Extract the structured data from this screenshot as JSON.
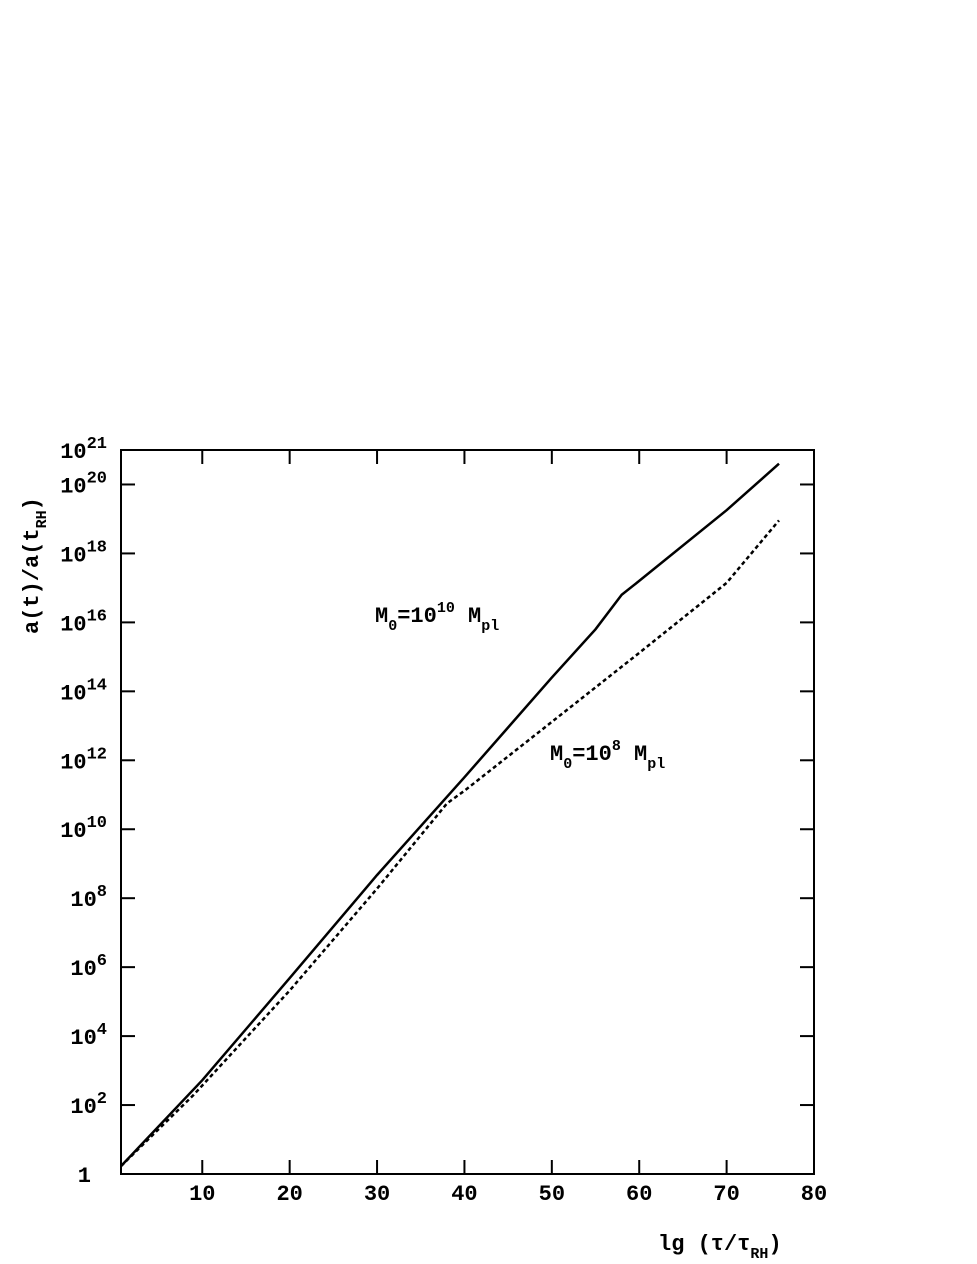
{
  "chart_data": {
    "type": "line",
    "ylabel": [
      {
        "text": "a(t)/a(t"
      },
      {
        "text": "RH",
        "style": "sub"
      },
      {
        "text": ")"
      }
    ],
    "xlabel": [
      {
        "text": "lg (τ/τ"
      },
      {
        "text": "RH",
        "style": "sub"
      },
      {
        "text": ")"
      }
    ],
    "log_y": true,
    "xlim": [
      0.7,
      80
    ],
    "xticks": [
      10,
      20,
      30,
      40,
      50,
      60,
      70,
      80
    ],
    "ylim": [
      1,
      1e+21
    ],
    "yticks": [
      1,
      {
        "value": 100.0,
        "label": "10",
        "exponent": "2"
      },
      {
        "value": 10000.0,
        "label": "10",
        "exponent": "4"
      },
      {
        "value": 1000000.0,
        "label": "10",
        "exponent": "6"
      },
      {
        "value": 100000000.0,
        "label": "10",
        "exponent": "8"
      },
      {
        "value": 10000000000.0,
        "label": "10",
        "exponent": "10"
      },
      {
        "value": 1000000000000.0,
        "label": "10",
        "exponent": "12"
      },
      {
        "value": 100000000000000.0,
        "label": "10",
        "exponent": "14"
      },
      {
        "value": 1e+16,
        "label": "10",
        "exponent": "16"
      },
      {
        "value": 1e+18,
        "label": "10",
        "exponent": "18"
      },
      {
        "value": 1e+20,
        "label": "10",
        "exponent": "20"
      },
      {
        "value": 1e+21,
        "label": "10",
        "exponent": "21"
      }
    ],
    "series": [
      {
        "color": "#000000",
        "dash": "solid",
        "x": [
          0.7,
          10,
          20,
          30,
          40,
          50,
          55,
          58,
          60,
          70,
          76
        ],
        "values": [
          1.7,
          525,
          480000.0,
          470000000.0,
          320000000000.0,
          250000000000000.0,
          6300000000000000.0,
          6.3e+16,
          1.6e+17,
          1.8e+19,
          4e+20
        ]
      },
      {
        "color": "#000000",
        "dash": "dotted",
        "x": [
          0.7,
          9,
          20,
          30,
          38,
          40,
          50,
          60,
          70,
          76
        ],
        "values": [
          1.7,
          195,
          210000.0,
          190000000.0,
          56000000000.0,
          130000000000.0,
          13000000000000.0,
          1300000000000000.0,
          1.4e+17,
          9.1e+18
        ]
      }
    ],
    "annotations": [
      [
        {
          "text": "M"
        },
        {
          "text": "0",
          "style": "sub"
        },
        {
          "text": "=10"
        },
        {
          "text": "10",
          "style": "sup"
        },
        {
          "text": " M"
        },
        {
          "text": "pl",
          "style": "sub"
        }
      ],
      [
        {
          "text": "M"
        },
        {
          "text": "0",
          "style": "sub"
        },
        {
          "text": "=10"
        },
        {
          "text": "8",
          "style": "sup"
        },
        {
          "text": " M"
        },
        {
          "text": "pl",
          "style": "sub"
        }
      ]
    ]
  }
}
